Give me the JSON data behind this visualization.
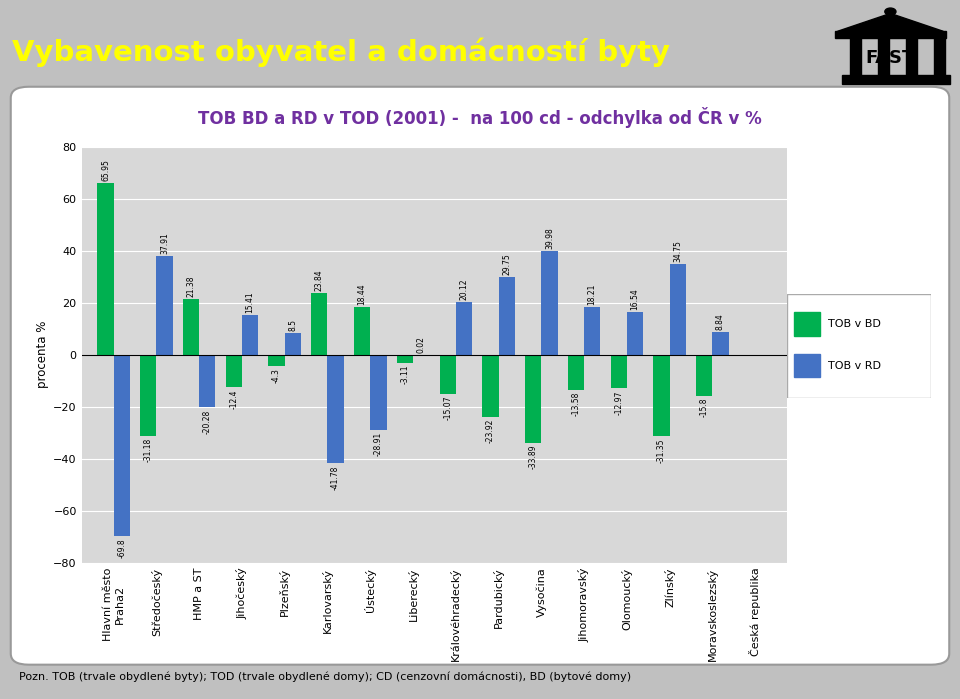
{
  "categories": [
    "Hlavní město\nPraha2",
    "Středočeský",
    "HMP a ST",
    "Jihočeský",
    "Plzeňský",
    "Karlovarský",
    "Ústecký",
    "Liberecký",
    "Královéhradecký",
    "Pardubický",
    "Vysočina",
    "Jihomoravský",
    "Olomoucký",
    "Zlínský",
    "Moravskoslezský",
    "Česká republika"
  ],
  "tob_bd": [
    65.95,
    -31.18,
    21.38,
    -12.4,
    -4.3,
    23.84,
    18.44,
    -3.11,
    -15.07,
    -23.92,
    -33.89,
    -13.58,
    -12.97,
    -31.35,
    -15.8,
    0
  ],
  "tob_rd": [
    -69.8,
    37.91,
    -20.28,
    15.41,
    8.5,
    -41.78,
    -28.91,
    0.02,
    20.12,
    29.75,
    39.98,
    18.21,
    16.54,
    34.75,
    8.84,
    0
  ],
  "color_bd": "#00b050",
  "color_rd": "#4472c4",
  "title": "TOB BD a RD v TOD (2001) -  na 100 cd - odchylka od ČR v %",
  "title_color": "#7030a0",
  "ylabel": "procenta %",
  "ylim": [
    -80,
    80
  ],
  "yticks": [
    -80,
    -60,
    -40,
    -20,
    0,
    20,
    40,
    60,
    80
  ],
  "header_text": "Vybavenost obyvatel a domácností byty",
  "header_bg": "#7030a0",
  "header_fg": "#ffff00",
  "footer_text": "Pozn. TOB (trvale obydlené byty); TOD (trvale obydlené domy); CD (cenzovní domácnosti), BD (bytové domy)",
  "legend_bd": "TOB v BD",
  "legend_rd": "TOB v RD",
  "bg_color": "#c0c0c0",
  "chart_bg": "#d8d8d8",
  "white_area_bg": "#f0f0f0",
  "fast_logo_bg": "#ffffff"
}
